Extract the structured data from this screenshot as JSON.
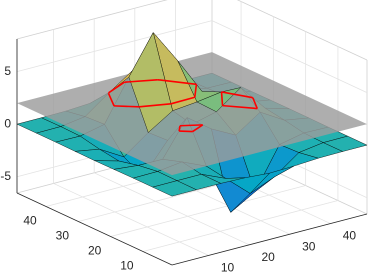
{
  "chart_data": {
    "type": "surface",
    "x": [
      1,
      7,
      13,
      19,
      25,
      31,
      37,
      43,
      49
    ],
    "y": [
      1,
      7,
      13,
      19,
      25,
      31,
      37,
      43,
      49
    ],
    "z": [
      [
        0,
        0,
        0,
        -0.07,
        -0.24,
        -0.17,
        -0.03,
        0,
        0
      ],
      [
        0,
        0.01,
        0.01,
        -0.99,
        -3.02,
        -2.05,
        -0.35,
        -0.01,
        0
      ],
      [
        0,
        0.03,
        0.33,
        -0.68,
        -5.68,
        -4.32,
        -0.44,
        0.05,
        0
      ],
      [
        -0.02,
        -0.25,
        -0.28,
        3.09,
        1.4,
        0.2,
        1.78,
        0.41,
        0.02
      ],
      [
        -0.04,
        -0.69,
        -2.77,
        0.06,
        0.98,
        1.57,
        3.27,
        0.7,
        0.03
      ],
      [
        -0.02,
        -0.42,
        -1.76,
        -0.05,
        1.42,
        1.65,
        1.99,
        0.4,
        0.02
      ],
      [
        0,
        -0.03,
        0.48,
        4.37,
        8.0,
        4.72,
        1.19,
        0.12,
        0
      ],
      [
        0,
        0.02,
        0.36,
        2.07,
        3.65,
        2.09,
        0.41,
        0.03,
        0
      ],
      [
        0,
        0,
        0.03,
        0.17,
        0.3,
        0.17,
        0.03,
        0,
        0
      ]
    ],
    "xlim": [
      1,
      49
    ],
    "ylim": [
      1,
      49
    ],
    "zlim": [
      -6.55,
      8.1
    ],
    "xticks": [
      10,
      20,
      30,
      40
    ],
    "yticks": [
      10,
      20,
      30,
      40
    ],
    "zticks": [
      -5,
      0,
      5
    ],
    "colormap": "parula",
    "edge_color": "#000000",
    "plane": {
      "z": 2,
      "color": "#9c9c9c"
    },
    "contour_color": "#ff0000",
    "grid": true
  }
}
